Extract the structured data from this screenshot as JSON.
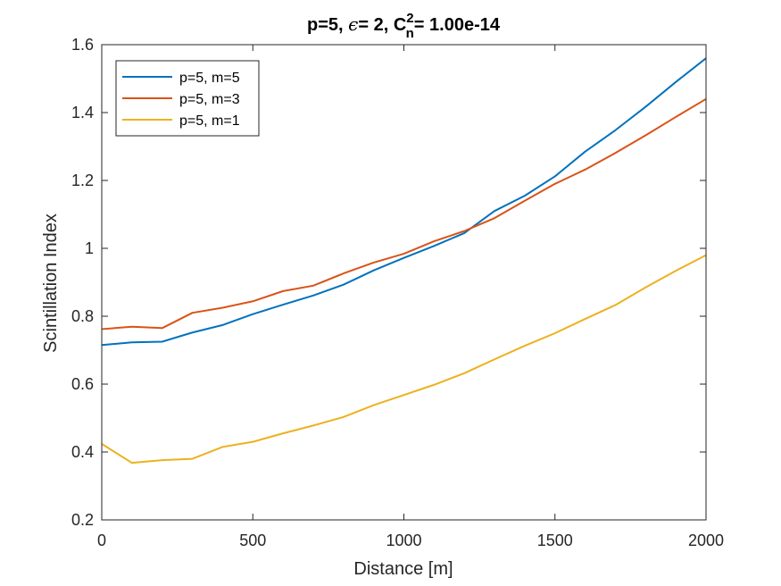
{
  "chart_data": {
    "type": "line",
    "title": {
      "main": "p=5, ",
      "epsilon_symbol": "ϵ",
      "epsilon_text": "= 2, C",
      "superscript": "2",
      "subscript": "n",
      "suffix": "= 1.00e-14"
    },
    "xlabel": "Distance [m]",
    "ylabel": "Scintillation Index",
    "xlim": [
      0,
      2000
    ],
    "ylim": [
      0.2,
      1.6
    ],
    "xticks": [
      0,
      500,
      1000,
      1500,
      2000
    ],
    "xtick_labels": [
      "0",
      "500",
      "1000",
      "1500",
      "2000"
    ],
    "yticks": [
      0.2,
      0.4,
      0.6,
      0.8,
      1.0,
      1.2,
      1.4,
      1.6
    ],
    "ytick_labels": [
      "0.2",
      "0.4",
      "0.6",
      "0.8",
      "1",
      "1.2",
      "1.4",
      "1.6"
    ],
    "grid": false,
    "legend_position": "top-left",
    "x": [
      0,
      100,
      200,
      300,
      400,
      500,
      600,
      700,
      800,
      900,
      1000,
      1100,
      1200,
      1300,
      1400,
      1500,
      1600,
      1700,
      1800,
      1900,
      2000
    ],
    "series": [
      {
        "name": "p=5, m=5",
        "color": "#0072bd",
        "values": [
          0.715,
          0.723,
          0.725,
          0.752,
          0.774,
          0.806,
          0.834,
          0.861,
          0.893,
          0.935,
          0.972,
          1.007,
          1.045,
          1.11,
          1.155,
          1.212,
          1.285,
          1.348,
          1.417,
          1.49,
          1.56
        ]
      },
      {
        "name": "p=5, m=3",
        "color": "#d95319",
        "values": [
          0.762,
          0.769,
          0.765,
          0.81,
          0.825,
          0.844,
          0.874,
          0.89,
          0.926,
          0.958,
          0.984,
          1.021,
          1.051,
          1.089,
          1.14,
          1.19,
          1.232,
          1.281,
          1.333,
          1.387,
          1.44
        ]
      },
      {
        "name": "p=5, m=1",
        "color": "#edb120",
        "values": [
          0.424,
          0.368,
          0.376,
          0.38,
          0.415,
          0.43,
          0.455,
          0.478,
          0.503,
          0.538,
          0.568,
          0.598,
          0.632,
          0.673,
          0.713,
          0.75,
          0.792,
          0.833,
          0.885,
          0.934,
          0.98
        ]
      }
    ]
  }
}
